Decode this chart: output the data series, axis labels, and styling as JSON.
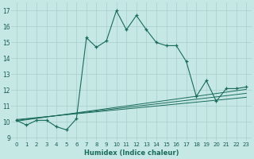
{
  "xlabel": "Humidex (Indice chaleur)",
  "ylabel": "",
  "background_color": "#c5e8e5",
  "grid_color": "#a8ceca",
  "line_color": "#1a6b5a",
  "xlim": [
    -0.5,
    23.5
  ],
  "ylim": [
    8.8,
    17.5
  ],
  "xticks": [
    0,
    1,
    2,
    3,
    4,
    5,
    6,
    7,
    8,
    9,
    10,
    11,
    12,
    13,
    14,
    15,
    16,
    17,
    18,
    19,
    20,
    21,
    22,
    23
  ],
  "yticks": [
    9,
    10,
    11,
    12,
    13,
    14,
    15,
    16,
    17
  ],
  "main_series": [
    10.1,
    9.8,
    10.1,
    10.1,
    9.7,
    9.5,
    10.2,
    15.3,
    14.7,
    15.1,
    17.0,
    15.8,
    16.7,
    15.8,
    15.0,
    14.8,
    14.8,
    13.8,
    11.6,
    12.6,
    11.3,
    12.1,
    12.1,
    12.2
  ],
  "trend_lines": [
    {
      "x0": 0,
      "y0": 10.05,
      "x1": 23,
      "y1": 12.05
    },
    {
      "x0": 0,
      "y0": 10.1,
      "x1": 23,
      "y1": 11.8
    },
    {
      "x0": 0,
      "y0": 10.15,
      "x1": 23,
      "y1": 11.55
    }
  ]
}
